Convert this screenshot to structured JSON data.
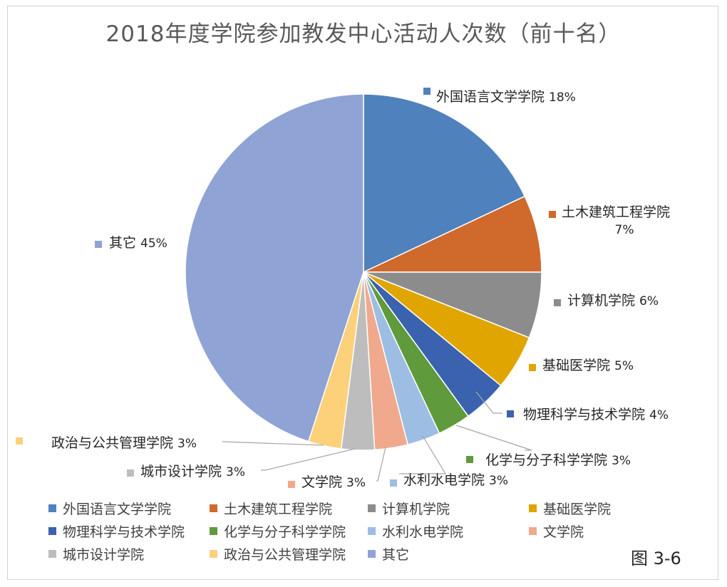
{
  "chart_data": {
    "type": "pie",
    "title": "2018年度学院参加教发中心活动人次数（前十名）",
    "slices": [
      {
        "name": "外国语言文学学院",
        "value": 18,
        "label": "18%",
        "color": "#4f81bd"
      },
      {
        "name": "土木建筑工程学院",
        "value": 7,
        "label": "7%",
        "color": "#d0692c"
      },
      {
        "name": "计算机学院",
        "value": 6,
        "label": "6%",
        "color": "#8c8c8c"
      },
      {
        "name": "基础医学院",
        "value": 5,
        "label": "5%",
        "color": "#e1a500"
      },
      {
        "name": "物理科学与技术学院",
        "value": 4,
        "label": "4%",
        "color": "#3a62ae"
      },
      {
        "name": "化学与分子科学学院",
        "value": 3,
        "label": "3%",
        "color": "#5f9a3c"
      },
      {
        "name": "水利水电学院",
        "value": 3,
        "label": "3%",
        "color": "#9dbde3"
      },
      {
        "name": "文学院",
        "value": 3,
        "label": "3%",
        "color": "#f0a98c"
      },
      {
        "name": "城市设计学院",
        "value": 3,
        "label": "3%",
        "color": "#bdbdbd"
      },
      {
        "name": "政治与公共管理学院",
        "value": 3,
        "label": "3%",
        "color": "#fdd07a"
      },
      {
        "name": "其它",
        "value": 45,
        "label": "45%",
        "color": "#8fa3d4"
      }
    ],
    "legend_position": "bottom"
  },
  "caption": "图 3-6"
}
